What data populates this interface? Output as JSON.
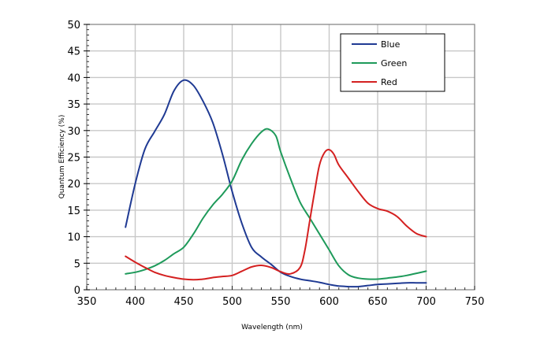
{
  "chart_data": {
    "type": "line",
    "title": "",
    "xlabel": "Wavelength (nm)",
    "ylabel": "Quantum Efficiency (%)",
    "xlim": [
      350,
      750
    ],
    "ylim": [
      0,
      50
    ],
    "x_ticks": [
      350,
      400,
      450,
      500,
      550,
      600,
      650,
      700,
      750
    ],
    "y_ticks": [
      0,
      5,
      10,
      15,
      20,
      25,
      30,
      35,
      40,
      45,
      50
    ],
    "grid": true,
    "legend": "top-right",
    "series": [
      {
        "name": "Blue",
        "color": "#1f3a93",
        "points": [
          [
            390,
            11.8
          ],
          [
            400,
            20
          ],
          [
            410,
            26.5
          ],
          [
            420,
            29.8
          ],
          [
            430,
            33
          ],
          [
            440,
            37.5
          ],
          [
            450,
            39.5
          ],
          [
            460,
            38.5
          ],
          [
            470,
            35.5
          ],
          [
            480,
            31.5
          ],
          [
            490,
            25.5
          ],
          [
            500,
            18.5
          ],
          [
            510,
            12.5
          ],
          [
            520,
            8
          ],
          [
            530,
            6.2
          ],
          [
            540,
            4.8
          ],
          [
            550,
            3.3
          ],
          [
            560,
            2.5
          ],
          [
            570,
            2.0
          ],
          [
            580,
            1.7
          ],
          [
            590,
            1.4
          ],
          [
            600,
            1.0
          ],
          [
            610,
            0.7
          ],
          [
            620,
            0.6
          ],
          [
            630,
            0.6
          ],
          [
            640,
            0.8
          ],
          [
            650,
            1.0
          ],
          [
            660,
            1.1
          ],
          [
            670,
            1.2
          ],
          [
            680,
            1.3
          ],
          [
            690,
            1.3
          ],
          [
            700,
            1.3
          ]
        ]
      },
      {
        "name": "Green",
        "color": "#1e9a5a",
        "points": [
          [
            390,
            3.0
          ],
          [
            400,
            3.3
          ],
          [
            410,
            3.8
          ],
          [
            420,
            4.5
          ],
          [
            430,
            5.5
          ],
          [
            440,
            6.8
          ],
          [
            450,
            8.0
          ],
          [
            460,
            10.5
          ],
          [
            470,
            13.5
          ],
          [
            480,
            16
          ],
          [
            490,
            18
          ],
          [
            500,
            20.5
          ],
          [
            510,
            24.5
          ],
          [
            520,
            27.5
          ],
          [
            530,
            29.7
          ],
          [
            537,
            30.3
          ],
          [
            545,
            29
          ],
          [
            550,
            26
          ],
          [
            560,
            21
          ],
          [
            570,
            16.5
          ],
          [
            580,
            13.5
          ],
          [
            590,
            10.5
          ],
          [
            600,
            7.5
          ],
          [
            610,
            4.5
          ],
          [
            620,
            2.8
          ],
          [
            630,
            2.2
          ],
          [
            640,
            2.0
          ],
          [
            650,
            2.0
          ],
          [
            660,
            2.2
          ],
          [
            670,
            2.4
          ],
          [
            680,
            2.7
          ],
          [
            690,
            3.1
          ],
          [
            700,
            3.5
          ]
        ]
      },
      {
        "name": "Red",
        "color": "#d42020",
        "points": [
          [
            390,
            6.3
          ],
          [
            400,
            5.2
          ],
          [
            410,
            4.2
          ],
          [
            420,
            3.3
          ],
          [
            430,
            2.7
          ],
          [
            440,
            2.3
          ],
          [
            450,
            2.0
          ],
          [
            460,
            1.9
          ],
          [
            470,
            2.0
          ],
          [
            480,
            2.3
          ],
          [
            490,
            2.5
          ],
          [
            500,
            2.7
          ],
          [
            510,
            3.5
          ],
          [
            520,
            4.3
          ],
          [
            530,
            4.6
          ],
          [
            540,
            4.2
          ],
          [
            550,
            3.4
          ],
          [
            560,
            3.0
          ],
          [
            570,
            4.2
          ],
          [
            575,
            7.5
          ],
          [
            580,
            13
          ],
          [
            585,
            18.5
          ],
          [
            590,
            23.5
          ],
          [
            595,
            25.8
          ],
          [
            600,
            26.4
          ],
          [
            605,
            25.5
          ],
          [
            610,
            23.5
          ],
          [
            620,
            21
          ],
          [
            630,
            18.5
          ],
          [
            640,
            16.3
          ],
          [
            650,
            15.3
          ],
          [
            660,
            14.8
          ],
          [
            670,
            13.8
          ],
          [
            680,
            12
          ],
          [
            690,
            10.6
          ],
          [
            700,
            10.0
          ]
        ]
      }
    ]
  }
}
